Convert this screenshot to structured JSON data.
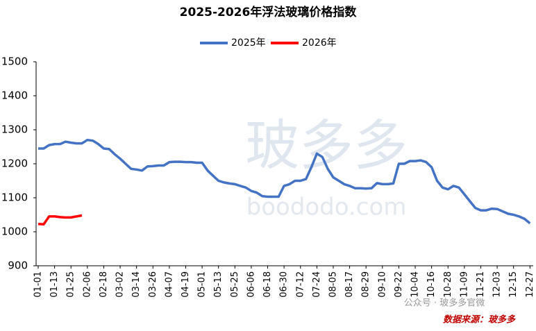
{
  "chart_data": {
    "type": "line",
    "title": "2025-2026年浮法玻璃价格指数",
    "categories": [
      "01-01",
      null,
      null,
      "01-13",
      null,
      null,
      "01-25",
      null,
      null,
      "02-06",
      null,
      null,
      "02-18",
      null,
      null,
      "03-02",
      null,
      null,
      "03-14",
      null,
      null,
      "03-26",
      null,
      null,
      "04-07",
      null,
      null,
      "04-19",
      null,
      null,
      "05-01",
      null,
      null,
      "05-13",
      null,
      null,
      "05-25",
      null,
      null,
      "06-06",
      null,
      null,
      "06-18",
      null,
      null,
      "06-30",
      null,
      null,
      "07-12",
      null,
      null,
      "07-24",
      null,
      null,
      "08-05",
      null,
      null,
      "08-17",
      null,
      null,
      "08-29",
      null,
      null,
      "09-10",
      null,
      null,
      "09-22",
      null,
      null,
      "10-04",
      null,
      null,
      "10-16",
      null,
      null,
      "10-28",
      null,
      null,
      "11-09",
      null,
      null,
      "11-21",
      null,
      null,
      "12-03",
      null,
      null,
      "12-15",
      null,
      null,
      "12-27"
    ],
    "series": [
      {
        "name": "2025年",
        "color": "#4472c4",
        "values": [
          1245,
          1245,
          1255,
          1258,
          1258,
          1265,
          1262,
          1260,
          1260,
          1270,
          1268,
          1258,
          1245,
          1243,
          1228,
          1215,
          1200,
          1185,
          1183,
          1180,
          1192,
          1193,
          1195,
          1195,
          1205,
          1206,
          1206,
          1205,
          1205,
          1203,
          1203,
          1180,
          1165,
          1150,
          1145,
          1142,
          1140,
          1135,
          1130,
          1120,
          1115,
          1105,
          1103,
          1103,
          1103,
          1135,
          1140,
          1150,
          1150,
          1155,
          1190,
          1230,
          1220,
          1185,
          1160,
          1150,
          1140,
          1135,
          1128,
          1128,
          1127,
          1128,
          1143,
          1140,
          1140,
          1142,
          1200,
          1200,
          1208,
          1208,
          1210,
          1205,
          1190,
          1150,
          1130,
          1125,
          1135,
          1130,
          1110,
          1090,
          1070,
          1063,
          1063,
          1068,
          1067,
          1060,
          1053,
          1050,
          1045,
          1038,
          1025
        ]
      },
      {
        "name": "2026年",
        "color": "#ff0000",
        "values": [
          1023,
          1022,
          1045,
          1045,
          1043,
          1042,
          1042,
          1045,
          1048,
          null,
          null,
          null,
          null,
          null,
          null,
          null,
          null,
          null,
          null,
          null,
          null,
          null,
          null,
          null,
          null,
          null,
          null,
          null,
          null,
          null,
          null,
          null,
          null,
          null,
          null,
          null,
          null,
          null,
          null,
          null,
          null,
          null,
          null,
          null,
          null,
          null,
          null,
          null,
          null,
          null,
          null,
          null,
          null,
          null,
          null,
          null,
          null,
          null,
          null,
          null,
          null,
          null,
          null,
          null,
          null,
          null,
          null,
          null,
          null,
          null,
          null,
          null,
          null,
          null,
          null,
          null,
          null,
          null,
          null,
          null,
          null,
          null,
          null,
          null,
          null,
          null,
          null,
          null,
          null,
          null,
          null
        ]
      }
    ],
    "ylim": [
      900,
      1500
    ],
    "yticks": [
      900,
      1000,
      1100,
      1200,
      1300,
      1400,
      1500
    ],
    "legend": "top",
    "watermark": [
      "玻多多",
      "boododo.com"
    ],
    "source": "数据来源：玻多多",
    "credit": "公众号 · 玻多多官微"
  }
}
